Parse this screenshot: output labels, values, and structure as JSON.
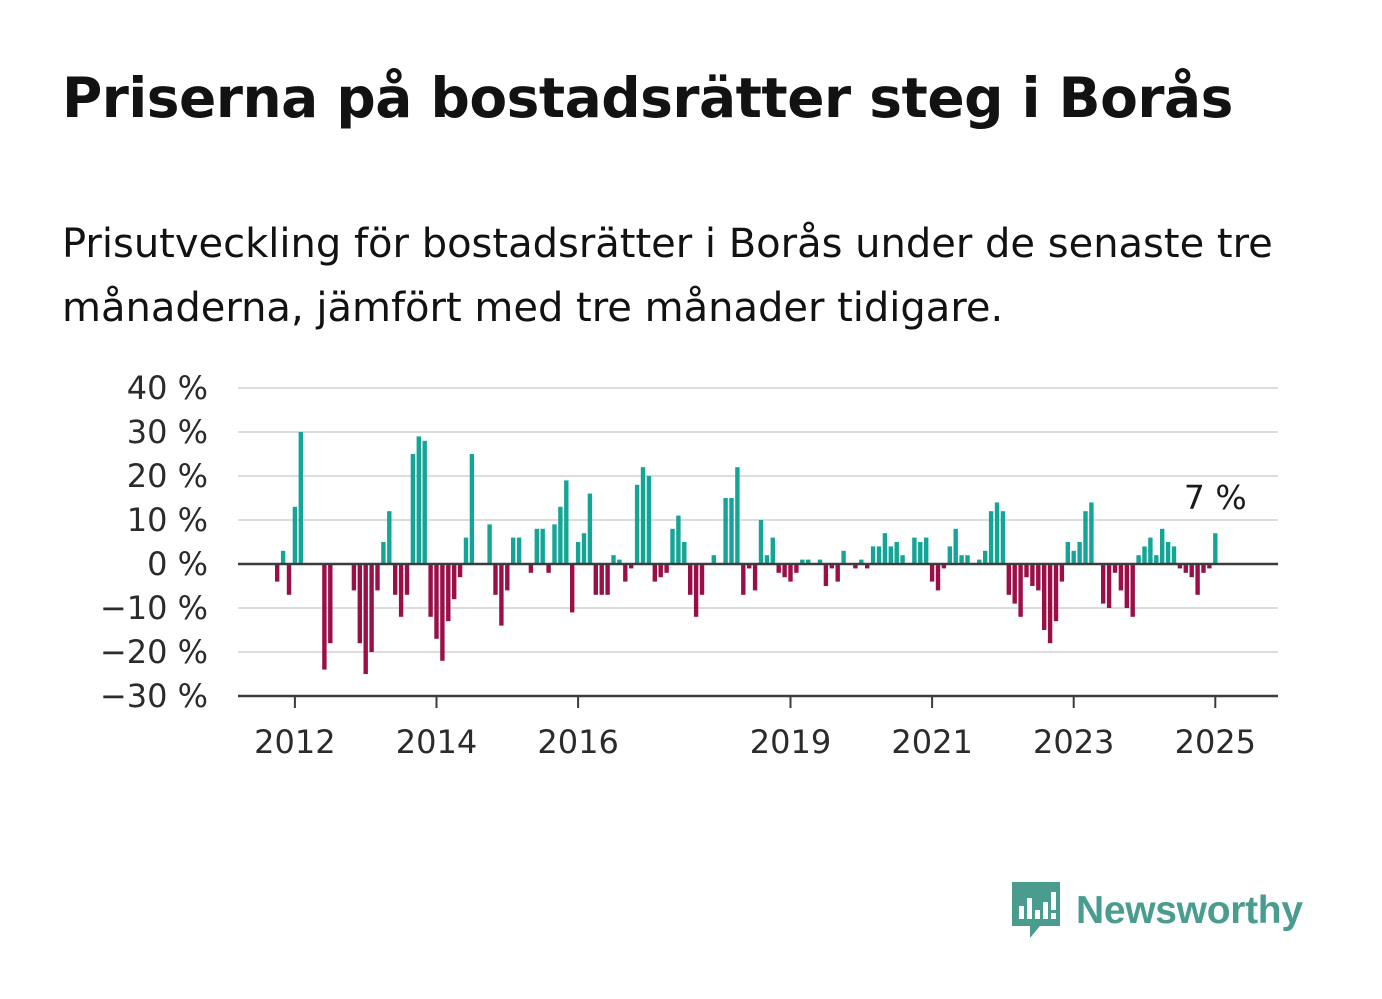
{
  "title": "Priserna på bostadsrätter steg i Borås",
  "subtitle": "Prisutveckling för bostadsrätter i Borås under de senaste tre månaderna, jämfört med tre månader tidigare.",
  "logo": {
    "text": "Newsworthy",
    "icon": "bar-chart-speech-bubble-icon"
  },
  "colors": {
    "positive": "#14a596",
    "negative": "#9a0f48",
    "grid": "#dcdcdc",
    "axis": "#3c3c3c",
    "brand": "#4a9c8f"
  },
  "chart_data": {
    "type": "bar",
    "title": "Priserna på bostadsrätter steg i Borås",
    "subtitle": "Prisutveckling för bostadsrätter i Borås under de senaste tre månaderna, jämfört med tre månader tidigare.",
    "xlabel": "",
    "ylabel": "",
    "unit": "%",
    "grid": true,
    "ylim": [
      -30,
      40
    ],
    "yticks": [
      40,
      30,
      20,
      10,
      0,
      -10,
      -20,
      -30
    ],
    "ytick_labels": [
      "40 %",
      "30 %",
      "20 %",
      "10 %",
      "0 %",
      "−10 %",
      "−20 %",
      "−30 %"
    ],
    "xticks": [
      "2012",
      "2014",
      "2016",
      "2019",
      "2021",
      "2023",
      "2025"
    ],
    "start": "2011-10",
    "frequency": "monthly",
    "values": [
      -4,
      3,
      -7,
      13,
      30,
      0,
      0,
      0,
      -24,
      -18,
      0,
      0,
      0,
      -6,
      -18,
      -25,
      -20,
      -6,
      5,
      12,
      -7,
      -12,
      -7,
      25,
      29,
      28,
      -12,
      -17,
      -22,
      -13,
      -8,
      -3,
      6,
      25,
      0,
      0,
      9,
      -7,
      -14,
      -6,
      6,
      6,
      0,
      -2,
      8,
      8,
      -2,
      9,
      13,
      19,
      -11,
      5,
      7,
      16,
      -7,
      -7,
      -7,
      2,
      1,
      -4,
      -1,
      18,
      22,
      20,
      -4,
      -3,
      -2,
      8,
      11,
      5,
      -7,
      -12,
      -7,
      0,
      2,
      0,
      15,
      15,
      22,
      -7,
      -1,
      -6,
      10,
      2,
      6,
      -2,
      -3,
      -4,
      -2,
      1,
      1,
      0,
      1,
      -5,
      -1,
      -4,
      3,
      0,
      -1,
      1,
      -1,
      4,
      4,
      7,
      4,
      5,
      2,
      0,
      6,
      5,
      6,
      -4,
      -6,
      -1,
      4,
      8,
      2,
      2,
      0,
      1,
      3,
      12,
      14,
      12,
      -7,
      -9,
      -12,
      -3,
      -5,
      -6,
      -15,
      -18,
      -13,
      -4,
      5,
      3,
      5,
      12,
      14,
      0,
      -9,
      -10,
      -2,
      -6,
      -10,
      -12,
      2,
      4,
      6,
      2,
      8,
      5,
      4,
      -1,
      -2,
      -3,
      -7,
      -2,
      -1,
      7
    ],
    "annotation": {
      "text": "7 %",
      "value": 7,
      "index": "last"
    }
  }
}
